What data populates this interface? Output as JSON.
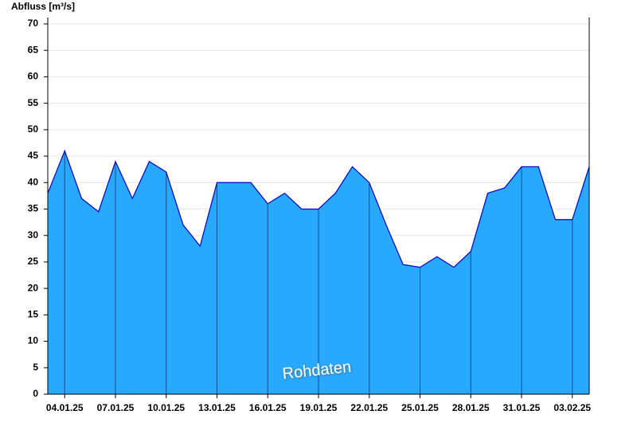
{
  "chart_data": {
    "type": "area",
    "y_label": "Abfluss [m³/s]",
    "watermark": "Rohdaten",
    "x": [
      "03.01.25",
      "04.01.25",
      "05.01.25",
      "06.01.25",
      "07.01.25",
      "08.01.25",
      "09.01.25",
      "10.01.25",
      "11.01.25",
      "12.01.25",
      "13.01.25",
      "14.01.25",
      "15.01.25",
      "16.01.25",
      "17.01.25",
      "18.01.25",
      "19.01.25",
      "20.01.25",
      "21.01.25",
      "22.01.25",
      "23.01.25",
      "24.01.25",
      "25.01.25",
      "26.01.25",
      "27.01.25",
      "28.01.25",
      "29.01.25",
      "30.01.25",
      "31.01.25",
      "01.02.25",
      "02.02.25",
      "03.02.25",
      "04.02.25"
    ],
    "values": [
      38,
      46,
      37,
      34.5,
      44,
      37,
      44,
      42,
      32,
      28,
      40,
      40,
      40,
      36,
      38,
      35,
      35,
      38,
      43,
      40,
      32,
      24.5,
      24,
      26,
      24,
      27,
      38,
      39,
      43,
      43,
      33,
      33,
      43
    ],
    "color": "#29a8ff",
    "line_color": "#0000cc",
    "xlim": [
      "03.01.25",
      "04.02.25"
    ],
    "xticks": [
      "04.01.25",
      "07.01.25",
      "10.01.25",
      "13.01.25",
      "16.01.25",
      "19.01.25",
      "22.01.25",
      "25.01.25",
      "28.01.25",
      "31.01.25",
      "03.02.25"
    ],
    "ylim": [
      0,
      70
    ],
    "yticks": [
      0,
      5,
      10,
      15,
      20,
      25,
      30,
      35,
      40,
      45,
      50,
      55,
      60,
      65,
      70
    ],
    "grid": true
  }
}
